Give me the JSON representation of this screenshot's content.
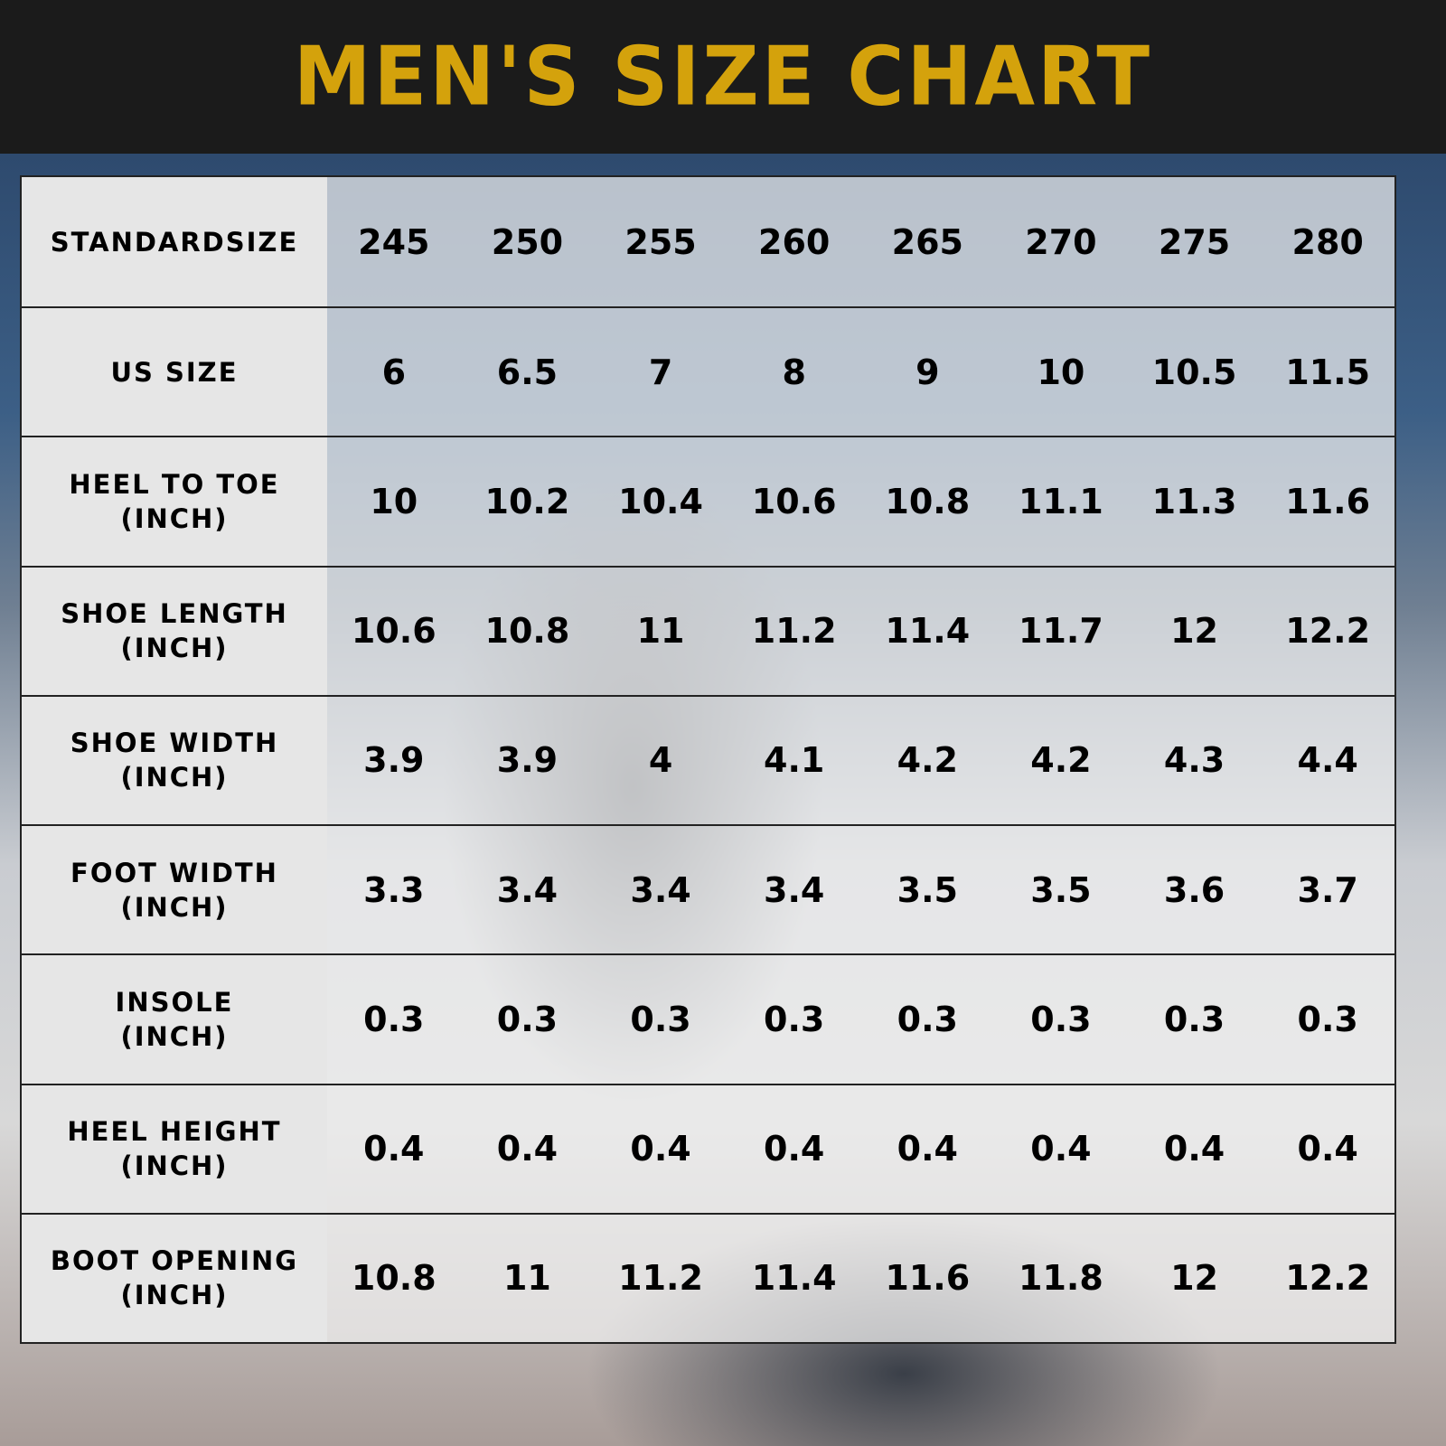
{
  "title": "MEN'S SIZE CHART",
  "colors": {
    "title": "#d4a20c",
    "header_bg": "#1b1b1b"
  },
  "rows": [
    {
      "label": "STANDARDSIZE",
      "unit": "",
      "values": [
        "245",
        "250",
        "255",
        "260",
        "265",
        "270",
        "275",
        "280"
      ]
    },
    {
      "label": "US SIZE",
      "unit": "",
      "values": [
        "6",
        "6.5",
        "7",
        "8",
        "9",
        "10",
        "10.5",
        "11.5"
      ]
    },
    {
      "label": "HEEL TO TOE",
      "unit": "(INCH)",
      "values": [
        "10",
        "10.2",
        "10.4",
        "10.6",
        "10.8",
        "11.1",
        "11.3",
        "11.6"
      ]
    },
    {
      "label": "SHOE LENGTH",
      "unit": "(INCH)",
      "values": [
        "10.6",
        "10.8",
        "11",
        "11.2",
        "11.4",
        "11.7",
        "12",
        "12.2"
      ]
    },
    {
      "label": "SHOE WIDTH",
      "unit": "(INCH)",
      "values": [
        "3.9",
        "3.9",
        "4",
        "4.1",
        "4.2",
        "4.2",
        "4.3",
        "4.4"
      ]
    },
    {
      "label": "FOOT WIDTH",
      "unit": "(INCH)",
      "values": [
        "3.3",
        "3.4",
        "3.4",
        "3.4",
        "3.5",
        "3.5",
        "3.6",
        "3.7"
      ]
    },
    {
      "label": "INSOLE",
      "unit": "(INCH)",
      "values": [
        "0.3",
        "0.3",
        "0.3",
        "0.3",
        "0.3",
        "0.3",
        "0.3",
        "0.3"
      ]
    },
    {
      "label": "HEEL HEIGHT",
      "unit": "(INCH)",
      "values": [
        "0.4",
        "0.4",
        "0.4",
        "0.4",
        "0.4",
        "0.4",
        "0.4",
        "0.4"
      ]
    },
    {
      "label": "BOOT OPENING",
      "unit": "(INCH)",
      "values": [
        "10.8",
        "11",
        "11.2",
        "11.4",
        "11.6",
        "11.8",
        "12",
        "12.2"
      ]
    }
  ]
}
